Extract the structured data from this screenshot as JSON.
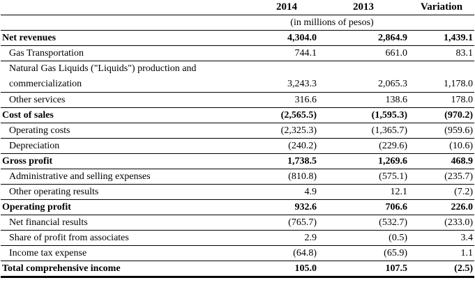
{
  "header": {
    "col_2014": "2014",
    "col_2013": "2013",
    "col_variation": "Variation",
    "units": "(in millions of pesos)"
  },
  "rows": [
    {
      "label": "Net revenues",
      "v2014": "4,304.0",
      "v2013": "2,864.9",
      "var": "1,439.1",
      "bold": true
    },
    {
      "label": "Gas Transportation",
      "v2014": "744.1",
      "v2013": "661.0",
      "var": "83.1"
    },
    {
      "label": "Natural Gas Liquids (\"Liquids\") production and commercialization",
      "v2014": "3,243.3",
      "v2013": "2,065.3",
      "var": "1,178.0",
      "wrap": true
    },
    {
      "label": "Other services",
      "v2014": "316.6",
      "v2013": "138.6",
      "var": "178.0"
    },
    {
      "label": "Cost of sales",
      "v2014": "(2,565.5)",
      "v2013": "(1,595.3)",
      "var": "(970.2)",
      "bold": true
    },
    {
      "label": "Operating costs",
      "v2014": "(2,325.3)",
      "v2013": "(1,365.7)",
      "var": "(959.6)"
    },
    {
      "label": "Depreciation",
      "v2014": "(240.2)",
      "v2013": "(229.6)",
      "var": "(10.6)"
    },
    {
      "label": "Gross profit",
      "v2014": "1,738.5",
      "v2013": "1,269.6",
      "var": "468.9",
      "bold": true
    },
    {
      "label": "Administrative and selling expenses",
      "v2014": "(810.8)",
      "v2013": "(575.1)",
      "var": "(235.7)"
    },
    {
      "label": "Other operating results",
      "v2014": "4.9",
      "v2013": "12.1",
      "var": "(7.2)"
    },
    {
      "label": "Operating profit",
      "v2014": "932.6",
      "v2013": "706.6",
      "var": "226.0",
      "bold": true
    },
    {
      "label": "Net financial results",
      "v2014": "(765.7)",
      "v2013": "(532.7)",
      "var": "(233.0)"
    },
    {
      "label": "Share of profit from associates",
      "v2014": "2.9",
      "v2013": "(0.5)",
      "var": "3.4"
    },
    {
      "label": "Income tax expense",
      "v2014": "(64.8)",
      "v2013": "(65.9)",
      "var": "1.1"
    },
    {
      "label": "Total comprehensive income",
      "v2014": "105.0",
      "v2013": "107.5",
      "var": "(2.5)",
      "bold": true,
      "total": true
    }
  ]
}
